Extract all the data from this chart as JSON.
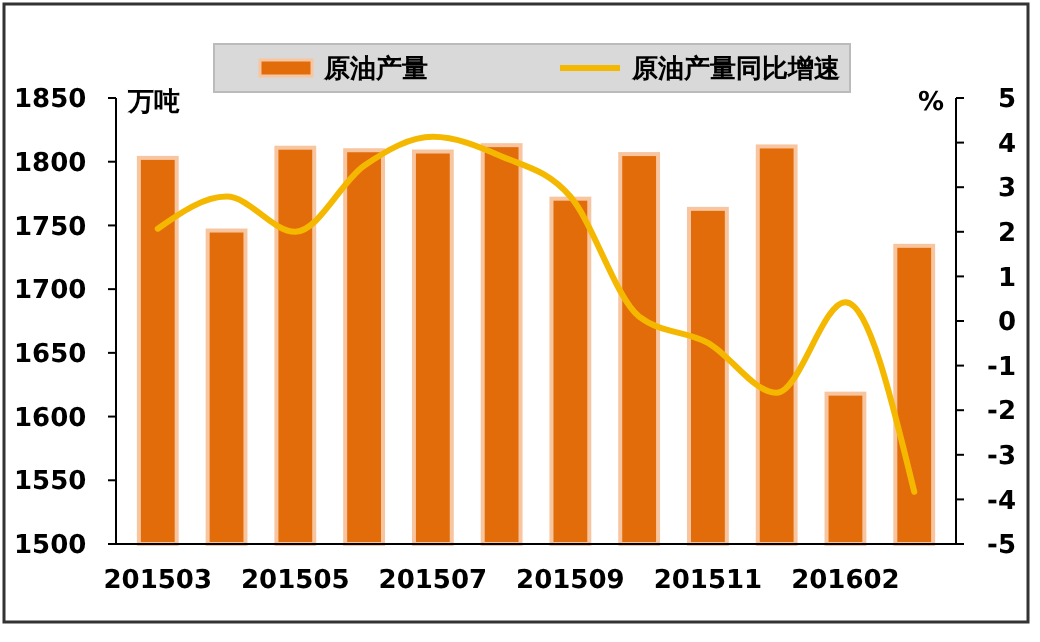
{
  "chart_data": {
    "type": "bar",
    "ylabel": "万吨",
    "y2label": "%",
    "categories": [
      "201503",
      null,
      "201505",
      null,
      "201507",
      null,
      "201509",
      null,
      "201511",
      null,
      "201602",
      null
    ],
    "series": [
      {
        "name": "原油产量",
        "color": "#e36c0a",
        "values": [
          1803,
          1746,
          1811,
          1809,
          1808,
          1813,
          1771,
          1806,
          1763,
          1812,
          1618,
          1734
        ]
      },
      {
        "name": "原油产量同比增速",
        "type": "line",
        "axis": "y2",
        "color": "#f5b800",
        "values": [
          2.07,
          2.79,
          2.0,
          3.48,
          4.13,
          3.69,
          2.79,
          0.1,
          -0.49,
          -1.61,
          0.42,
          -3.83
        ]
      }
    ],
    "ylim": [
      1500,
      1850
    ],
    "yticks": [
      1500,
      1550,
      1600,
      1650,
      1700,
      1750,
      1800,
      1850
    ],
    "y2lim": [
      -5,
      5
    ],
    "y2ticks": [
      -5,
      -4,
      -3,
      -2,
      -1,
      0,
      1,
      2,
      3,
      4,
      5
    ],
    "grid": false,
    "legend": "top",
    "marker": "none",
    "line_style": "solid"
  }
}
